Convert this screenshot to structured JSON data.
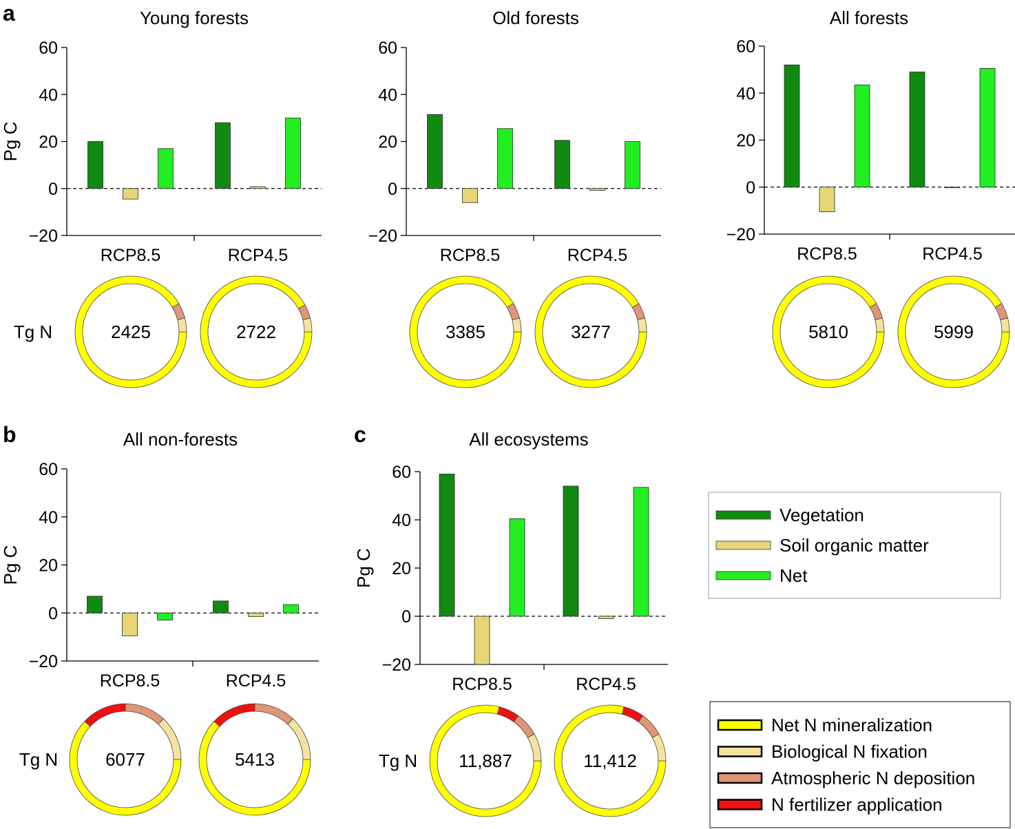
{
  "figure": {
    "panel_letters": [
      "a",
      "b",
      "c"
    ],
    "y_axis_label": "Pg C",
    "donut_label": "Tg N"
  },
  "colors": {
    "vegetation": "#118A11",
    "soil": "#E6D675",
    "net": "#22EE22",
    "net_n_mineralization": "#FFFF00",
    "biological_n_fixation": "#F4E3A0",
    "atmospheric_n_deposition": "#DE9677",
    "n_fertilizer": "#F01010"
  },
  "legend_carbon": [
    {
      "label": "Vegetation",
      "color_key": "vegetation"
    },
    {
      "label": "Soil organic matter",
      "color_key": "soil"
    },
    {
      "label": "Net",
      "color_key": "net"
    }
  ],
  "legend_nitrogen": [
    {
      "label": "Net N mineralization",
      "color_key": "net_n_mineralization"
    },
    {
      "label": "Biological N fixation",
      "color_key": "biological_n_fixation"
    },
    {
      "label": "Atmospheric N deposition",
      "color_key": "atmospheric_n_deposition"
    },
    {
      "label": "N fertilizer application",
      "color_key": "n_fertilizer"
    }
  ],
  "chart_data": [
    {
      "type": "bar",
      "panel": "a",
      "title": "Young forests",
      "categories": [
        "RCP8.5",
        "RCP4.5"
      ],
      "ylabel": "Pg C",
      "ylim": [
        -20,
        60
      ],
      "yticks": [
        -20,
        0,
        20,
        40,
        60
      ],
      "series": [
        {
          "name": "Vegetation",
          "values": [
            20,
            28
          ]
        },
        {
          "name": "Soil organic matter",
          "values": [
            -4.5,
            0.8
          ]
        },
        {
          "name": "Net",
          "values": [
            17,
            30
          ]
        }
      ],
      "donuts": [
        {
          "scenario": "RCP8.5",
          "total_label": "2425",
          "shares": {
            "Net N mineralization": 0.915,
            "Atmospheric N deposition": 0.045,
            "Biological N fixation": 0.04,
            "N fertilizer application": 0
          }
        },
        {
          "scenario": "RCP4.5",
          "total_label": "2722",
          "shares": {
            "Net N mineralization": 0.92,
            "Atmospheric N deposition": 0.04,
            "Biological N fixation": 0.04,
            "N fertilizer application": 0
          }
        }
      ]
    },
    {
      "type": "bar",
      "panel": "a",
      "title": "Old forests",
      "categories": [
        "RCP8.5",
        "RCP4.5"
      ],
      "ylabel": "Pg C",
      "ylim": [
        -20,
        60
      ],
      "yticks": [
        -20,
        0,
        20,
        40,
        60
      ],
      "series": [
        {
          "name": "Vegetation",
          "values": [
            31.5,
            20.5
          ]
        },
        {
          "name": "Soil organic matter",
          "values": [
            -6,
            -0.8
          ]
        },
        {
          "name": "Net",
          "values": [
            25.5,
            20
          ]
        }
      ],
      "donuts": [
        {
          "scenario": "RCP8.5",
          "total_label": "3385",
          "shares": {
            "Net N mineralization": 0.915,
            "Atmospheric N deposition": 0.045,
            "Biological N fixation": 0.04,
            "N fertilizer application": 0
          }
        },
        {
          "scenario": "RCP4.5",
          "total_label": "3277",
          "shares": {
            "Net N mineralization": 0.915,
            "Atmospheric N deposition": 0.045,
            "Biological N fixation": 0.04,
            "N fertilizer application": 0
          }
        }
      ]
    },
    {
      "type": "bar",
      "panel": "a",
      "title": "All forests",
      "categories": [
        "RCP8.5",
        "RCP4.5"
      ],
      "ylabel": "Pg C",
      "ylim": [
        -20,
        60
      ],
      "yticks": [
        -20,
        0,
        20,
        40,
        60
      ],
      "series": [
        {
          "name": "Vegetation",
          "values": [
            52,
            49
          ]
        },
        {
          "name": "Soil organic matter",
          "values": [
            -10.5,
            0
          ]
        },
        {
          "name": "Net",
          "values": [
            43.5,
            50.5
          ]
        }
      ],
      "donuts": [
        {
          "scenario": "RCP8.5",
          "total_label": "5810",
          "shares": {
            "Net N mineralization": 0.915,
            "Atmospheric N deposition": 0.045,
            "Biological N fixation": 0.04,
            "N fertilizer application": 0
          }
        },
        {
          "scenario": "RCP4.5",
          "total_label": "5999",
          "shares": {
            "Net N mineralization": 0.915,
            "Atmospheric N deposition": 0.045,
            "Biological N fixation": 0.04,
            "N fertilizer application": 0
          }
        }
      ]
    },
    {
      "type": "bar",
      "panel": "b",
      "title": "All non-forests",
      "categories": [
        "RCP8.5",
        "RCP4.5"
      ],
      "ylabel": "Pg C",
      "ylim": [
        -20,
        60
      ],
      "yticks": [
        -20,
        0,
        20,
        40,
        60
      ],
      "series": [
        {
          "name": "Vegetation",
          "values": [
            7,
            5
          ]
        },
        {
          "name": "Soil organic matter",
          "values": [
            -9.5,
            -1.5
          ]
        },
        {
          "name": "Net",
          "values": [
            -3,
            3.5
          ]
        }
      ],
      "donuts": [
        {
          "scenario": "RCP8.5",
          "total_label": "6077",
          "shares": {
            "Net N mineralization": 0.62,
            "N fertilizer application": 0.13,
            "Atmospheric N deposition": 0.12,
            "Biological N fixation": 0.13
          }
        },
        {
          "scenario": "RCP4.5",
          "total_label": "5413",
          "shares": {
            "Net N mineralization": 0.62,
            "N fertilizer application": 0.13,
            "Atmospheric N deposition": 0.12,
            "Biological N fixation": 0.13
          }
        }
      ]
    },
    {
      "type": "bar",
      "panel": "c",
      "title": "All ecosystems",
      "categories": [
        "RCP8.5",
        "RCP4.5"
      ],
      "ylabel": "Pg C",
      "ylim": [
        -20,
        60
      ],
      "yticks": [
        -20,
        0,
        20,
        40,
        60
      ],
      "series": [
        {
          "name": "Vegetation",
          "values": [
            59,
            54
          ]
        },
        {
          "name": "Soil organic matter",
          "values": [
            -20,
            -1
          ]
        },
        {
          "name": "Net",
          "values": [
            40.5,
            53.5
          ]
        }
      ],
      "donuts": [
        {
          "scenario": "RCP8.5",
          "total_label": "11,887",
          "shares": {
            "Net N mineralization": 0.79,
            "N fertilizer application": 0.06,
            "Atmospheric N deposition": 0.07,
            "Biological N fixation": 0.08
          }
        },
        {
          "scenario": "RCP4.5",
          "total_label": "11,412",
          "shares": {
            "Net N mineralization": 0.79,
            "N fertilizer application": 0.06,
            "Atmospheric N deposition": 0.07,
            "Biological N fixation": 0.08
          }
        }
      ]
    }
  ]
}
